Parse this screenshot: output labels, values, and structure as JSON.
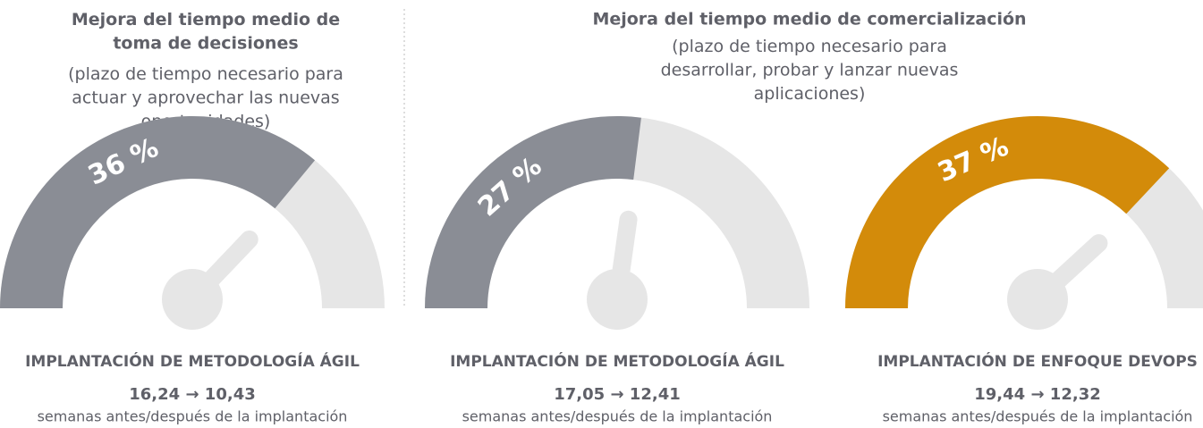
{
  "sections": [
    {
      "title": "Mejora del tiempo medio de toma de decisiones",
      "subtitle": "(plazo de tiempo necesario para actuar y aprovechar las nuevas oportunidades)"
    },
    {
      "title": "Mejora del tiempo medio de comercialización",
      "subtitle": "(plazo de tiempo necesario para desarrollar, probar y lanzar nuevas aplicaciones)"
    }
  ],
  "chart_data": [
    {
      "type": "gauge",
      "value": 36,
      "value_label": "36 %",
      "ylim": [
        0,
        100
      ],
      "color": "#8a8d95",
      "label": "IMPLANTACIÓN DE METODOLOGÍA ÁGIL",
      "change": "16,24 → 10,43",
      "note": "semanas antes/después de la implantación"
    },
    {
      "type": "gauge",
      "value": 27,
      "value_label": "27 %",
      "ylim": [
        0,
        100
      ],
      "color": "#8a8d95",
      "label": "IMPLANTACIÓN DE METODOLOGÍA ÁGIL",
      "change": "17,05 → 12,41",
      "note": "semanas antes/después de la implantación"
    },
    {
      "type": "gauge",
      "value": 37,
      "value_label": "37 %",
      "ylim": [
        0,
        100
      ],
      "color": "#d38b0a",
      "label": "IMPLANTACIÓN DE ENFOQUE DEVOPS",
      "change": "19,44 → 12,32",
      "note": "semanas antes/después de la implantación"
    }
  ]
}
